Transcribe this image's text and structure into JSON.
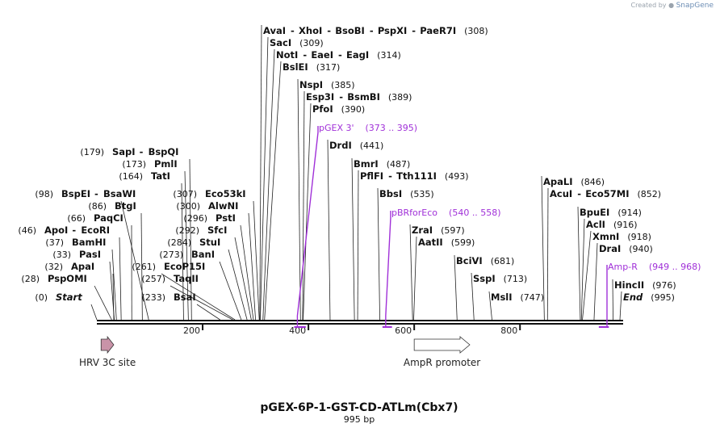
{
  "credit": {
    "prefix": "Created by",
    "brand": "SnapGene"
  },
  "plasmid": {
    "name": "pGEX-6P-1-GST-CD-ATLm(Cbx7)",
    "length_label": "995 bp",
    "length": 995
  },
  "ticks": [
    {
      "value": 200,
      "label": "200"
    },
    {
      "value": 400,
      "label": "400"
    },
    {
      "value": 600,
      "label": "600"
    },
    {
      "value": 800,
      "label": "800"
    }
  ],
  "sites": [
    {
      "name": "AvaI",
      "alts": [
        "XhoI",
        "BsoBI",
        "PspXI",
        "PaeR7I"
      ],
      "pos": 308,
      "pos_label": "(308)"
    },
    {
      "name": "SacI",
      "alts": [],
      "pos": 309,
      "pos_label": "(309)"
    },
    {
      "name": "NotI",
      "alts": [
        "EaeI",
        "EagI"
      ],
      "pos": 314,
      "pos_label": "(314)"
    },
    {
      "name": "BslEI",
      "alts": [],
      "pos": 317,
      "pos_label": "(317)"
    },
    {
      "name": "NspI",
      "alts": [],
      "pos": 385,
      "pos_label": "(385)"
    },
    {
      "name": "Esp3I",
      "alts": [
        "BsmBI"
      ],
      "pos": 389,
      "pos_label": "(389)"
    },
    {
      "name": "PfoI",
      "alts": [],
      "pos": 390,
      "pos_label": "(390)"
    },
    {
      "name": "DrdI",
      "alts": [],
      "pos": 441,
      "pos_label": "(441)"
    },
    {
      "name": "BmrI",
      "alts": [],
      "pos": 487,
      "pos_label": "(487)"
    },
    {
      "name": "PflFI",
      "alts": [
        "Tth111I"
      ],
      "pos": 493,
      "pos_label": "(493)"
    },
    {
      "name": "BbsI",
      "alts": [],
      "pos": 535,
      "pos_label": "(535)"
    },
    {
      "name": "ZraI",
      "alts": [],
      "pos": 597,
      "pos_label": "(597)"
    },
    {
      "name": "AatII",
      "alts": [],
      "pos": 599,
      "pos_label": "(599)"
    },
    {
      "name": "BciVI",
      "alts": [],
      "pos": 681,
      "pos_label": "(681)"
    },
    {
      "name": "SspI",
      "alts": [],
      "pos": 713,
      "pos_label": "(713)"
    },
    {
      "name": "MslI",
      "alts": [],
      "pos": 747,
      "pos_label": "(747)"
    },
    {
      "name": "ApaLI",
      "alts": [],
      "pos": 846,
      "pos_label": "(846)"
    },
    {
      "name": "AcuI",
      "alts": [
        "Eco57MI"
      ],
      "pos": 852,
      "pos_label": "(852)"
    },
    {
      "name": "BpuEI",
      "alts": [],
      "pos": 914,
      "pos_label": "(914)"
    },
    {
      "name": "AclI",
      "alts": [],
      "pos": 916,
      "pos_label": "(916)"
    },
    {
      "name": "XmnI",
      "alts": [],
      "pos": 918,
      "pos_label": "(918)"
    },
    {
      "name": "DraI",
      "alts": [],
      "pos": 940,
      "pos_label": "(940)"
    },
    {
      "name": "HincII",
      "alts": [],
      "pos": 976,
      "pos_label": "(976)"
    },
    {
      "name": "End",
      "alts": [],
      "pos": 995,
      "pos_label": "(995)",
      "italic": true
    },
    {
      "name": "SapI",
      "alts": [
        "BspQI"
      ],
      "pos": 179,
      "pos_label": "(179)",
      "pos_first": true
    },
    {
      "name": "PmlI",
      "alts": [],
      "pos": 173,
      "pos_label": "(173)",
      "pos_first": true
    },
    {
      "name": "TatI",
      "alts": [],
      "pos": 164,
      "pos_label": "(164)",
      "pos_first": true
    },
    {
      "name": "BspEI",
      "alts": [
        "BsaWI"
      ],
      "pos": 98,
      "pos_label": "(98)",
      "pos_first": true
    },
    {
      "name": "BtgI",
      "alts": [],
      "pos": 86,
      "pos_label": "(86)",
      "pos_first": true
    },
    {
      "name": "PaqCI",
      "alts": [],
      "pos": 66,
      "pos_label": "(66)",
      "pos_first": true
    },
    {
      "name": "ApoI",
      "alts": [
        "EcoRI"
      ],
      "pos": 46,
      "pos_label": "(46)",
      "pos_first": true
    },
    {
      "name": "BamHI",
      "alts": [],
      "pos": 37,
      "pos_label": "(37)",
      "pos_first": true
    },
    {
      "name": "PasI",
      "alts": [],
      "pos": 33,
      "pos_label": "(33)",
      "pos_first": true
    },
    {
      "name": "ApaI",
      "alts": [],
      "pos": 32,
      "pos_label": "(32)",
      "pos_first": true
    },
    {
      "name": "PspOMI",
      "alts": [],
      "pos": 28,
      "pos_label": "(28)",
      "pos_first": true
    },
    {
      "name": "Start",
      "alts": [],
      "pos": 0,
      "pos_label": "(0)",
      "pos_first": true,
      "italic": true
    },
    {
      "name": "Eco53kI",
      "alts": [],
      "pos": 307,
      "pos_label": "(307)",
      "pos_first": true
    },
    {
      "name": "AlwNI",
      "alts": [],
      "pos": 300,
      "pos_label": "(300)",
      "pos_first": true
    },
    {
      "name": "PstI",
      "alts": [],
      "pos": 296,
      "pos_label": "(296)",
      "pos_first": true
    },
    {
      "name": "SfcI",
      "alts": [],
      "pos": 292,
      "pos_label": "(292)",
      "pos_first": true
    },
    {
      "name": "StuI",
      "alts": [],
      "pos": 284,
      "pos_label": "(284)",
      "pos_first": true
    },
    {
      "name": "BanI",
      "alts": [],
      "pos": 273,
      "pos_label": "(273)",
      "pos_first": true
    },
    {
      "name": "EcoP15I",
      "alts": [],
      "pos": 261,
      "pos_label": "(261)",
      "pos_first": true
    },
    {
      "name": "TaqII",
      "alts": [],
      "pos": 257,
      "pos_label": "(257)",
      "pos_first": true
    },
    {
      "name": "BsaI",
      "alts": [],
      "pos": 233,
      "pos_label": "(233)",
      "pos_first": true
    }
  ],
  "primers": [
    {
      "name": "pGEX 3'",
      "range": "(373 .. 395)",
      "start": 373,
      "end": 395,
      "strand": "forward"
    },
    {
      "name": "pBRforEco",
      "range": "(540 .. 558)",
      "start": 540,
      "end": 558,
      "strand": "forward"
    },
    {
      "name": "Amp-R",
      "range": "(949 .. 968)",
      "start": 949,
      "end": 968,
      "strand": "reverse"
    }
  ],
  "features": [
    {
      "name": "HRV 3C site",
      "color": "#c993a8",
      "start": 8,
      "end": 32,
      "direction": "forward"
    },
    {
      "name": "AmpR promoter",
      "color": "#ffffff",
      "start": 600,
      "end": 705,
      "direction": "forward"
    }
  ],
  "colors": {
    "primer": "#a030d8",
    "backbone": "#111111",
    "line": "#222222"
  }
}
